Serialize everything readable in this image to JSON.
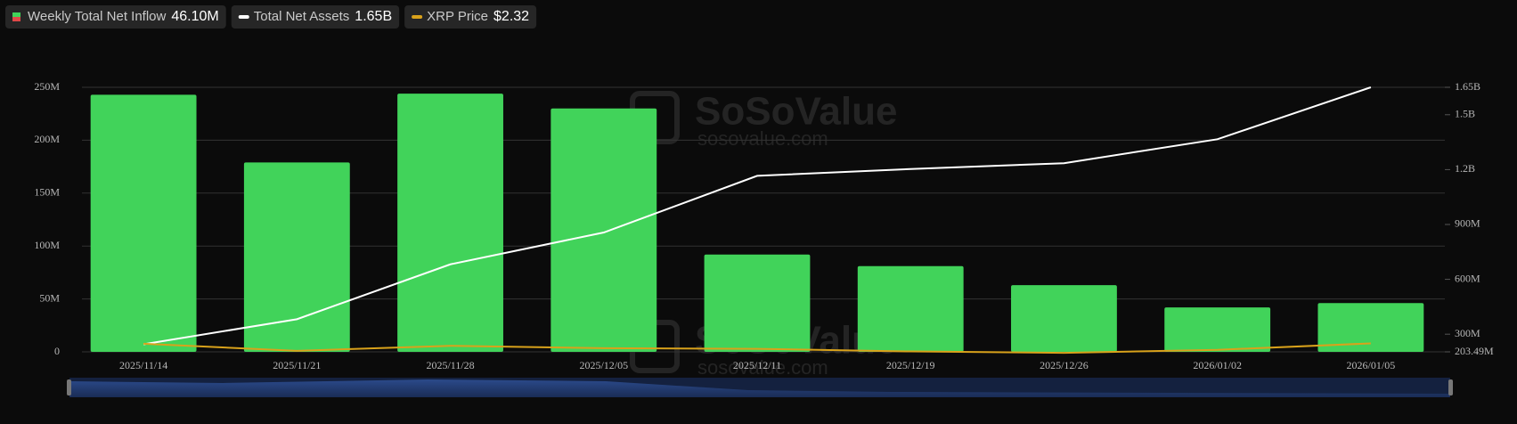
{
  "chart_data": {
    "type": "bar",
    "watermark": "SoSoValue",
    "watermark_url": "sosovalue.com",
    "categories": [
      "2025/11/14",
      "2025/11/21",
      "2025/11/28",
      "2025/12/05",
      "2025/12/11",
      "2025/12/19",
      "2025/12/26",
      "2026/01/02",
      "2026/01/05"
    ],
    "series": [
      {
        "name": "Weekly Total Net Inflow",
        "color": "#41d35a",
        "type": "bar",
        "last_label": "46.10M",
        "values": [
          243,
          179,
          244,
          230,
          92,
          81,
          63,
          42,
          46.1
        ]
      },
      {
        "name": "Total Net Assets",
        "color": "#ffffff",
        "type": "line",
        "axis": "y2",
        "last_label": "1.65B",
        "values": [
          245,
          382,
          682,
          856,
          1166,
          1203,
          1235,
          1366,
          1650
        ]
      },
      {
        "name": "XRP Price",
        "color": "#d9a21b",
        "type": "line",
        "axis": "y3",
        "last_label": "$2.32",
        "values": [
          2.3,
          1.95,
          2.2,
          2.08,
          2.05,
          1.92,
          1.85,
          2.0,
          2.32
        ]
      }
    ],
    "ylim": [
      0,
      250
    ],
    "yticks": [
      {
        "value": 0,
        "label": "0"
      },
      {
        "value": 50,
        "label": "50M"
      },
      {
        "value": 100,
        "label": "100M"
      },
      {
        "value": 150,
        "label": "150M"
      },
      {
        "value": 200,
        "label": "200M"
      },
      {
        "value": 250,
        "label": "250M"
      }
    ],
    "y2lim": [
      203.49,
      1650
    ],
    "y2ticks": [
      {
        "value": 203.49,
        "label": "203.49M"
      },
      {
        "value": 300,
        "label": "300M"
      },
      {
        "value": 600,
        "label": "600M"
      },
      {
        "value": 900,
        "label": "900M"
      },
      {
        "value": 1200,
        "label": "1.2B"
      },
      {
        "value": 1500,
        "label": "1.5B"
      },
      {
        "value": 1650,
        "label": "1.65B"
      }
    ],
    "y3lim": [
      1.9,
      15
    ],
    "grid": true
  }
}
